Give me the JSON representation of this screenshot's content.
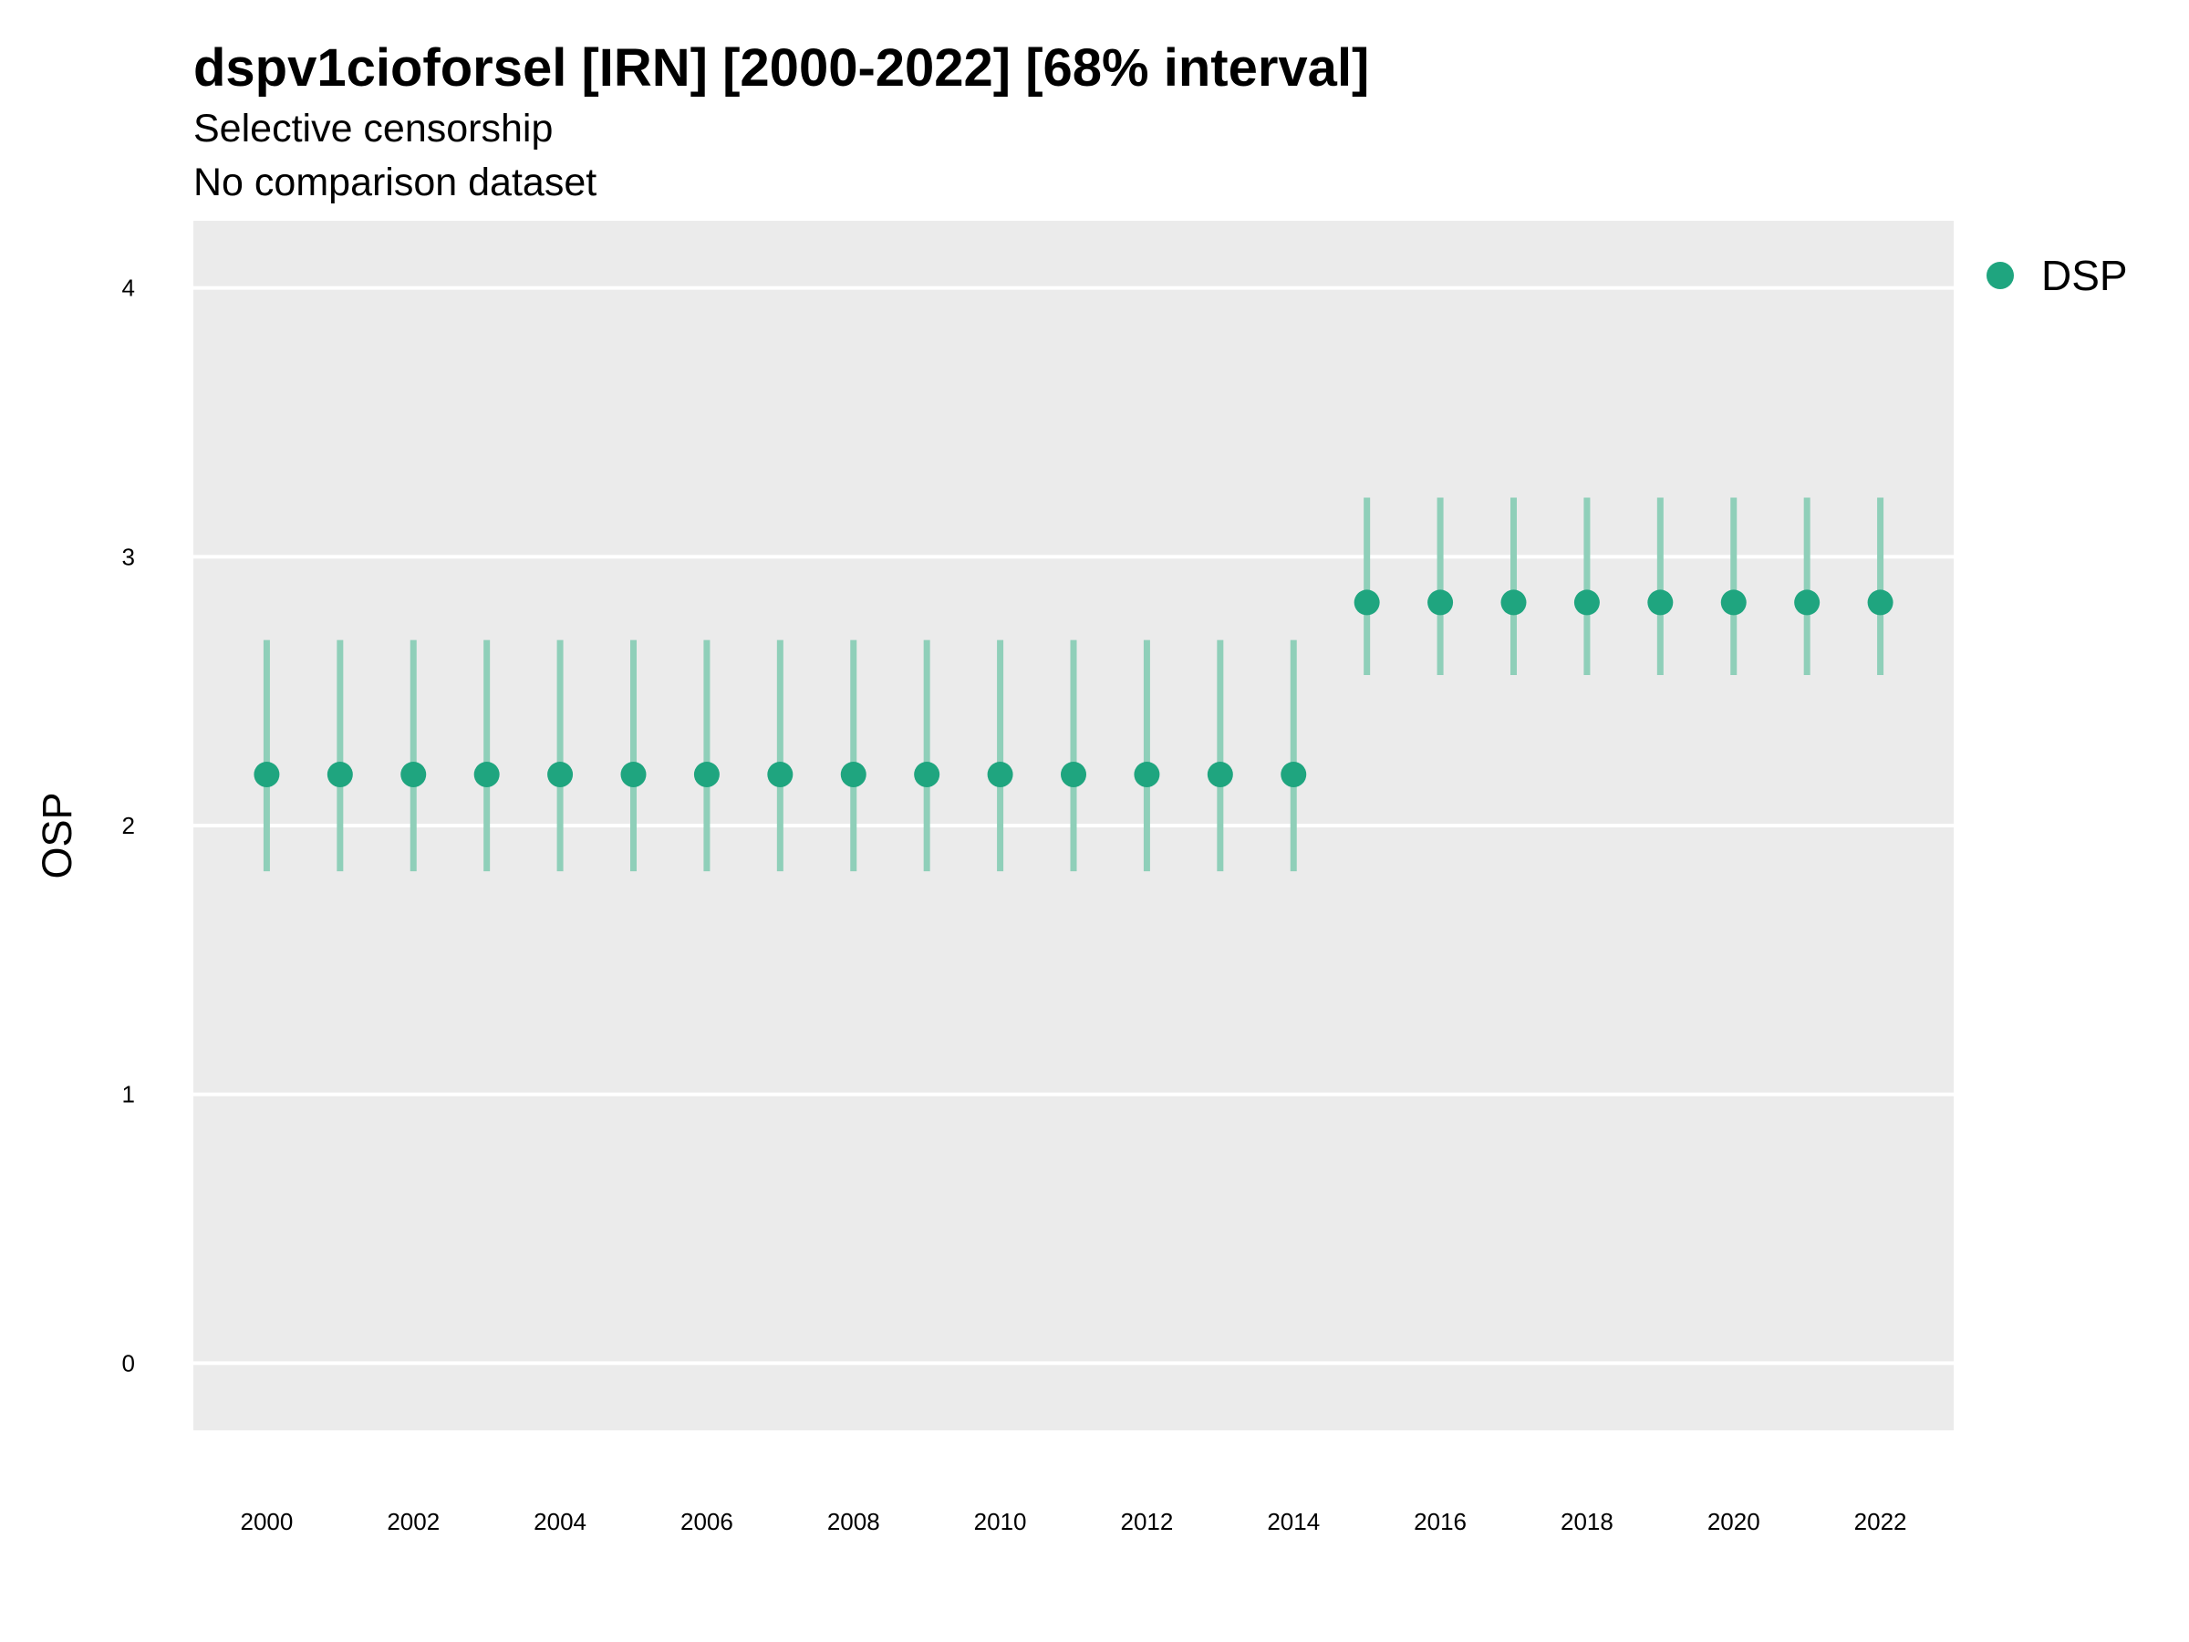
{
  "chart_data": {
    "type": "scatter",
    "title": "dspv1cioforsel [IRN] [2000-2022] [68% interval]",
    "subtitle_lines": [
      "Selective censorship",
      "No comparison dataset"
    ],
    "xlabel": "",
    "ylabel": "OSP",
    "ylim": [
      -0.25,
      4.25
    ],
    "xlim": [
      1999,
      2023
    ],
    "y_ticks": [
      "0",
      "1",
      "2",
      "3",
      "4"
    ],
    "x_ticks": [
      "2000",
      "2002",
      "2004",
      "2006",
      "2008",
      "2010",
      "2012",
      "2014",
      "2016",
      "2018",
      "2020",
      "2022"
    ],
    "grid": true,
    "legend_position": "right",
    "colors": {
      "point": "#1fa57f",
      "interval": "#8fcfb9",
      "panel": "#ebebeb",
      "grid": "#ffffff"
    },
    "series": [
      {
        "name": "DSP",
        "x": [
          2000,
          2001,
          2002,
          2003,
          2004,
          2005,
          2006,
          2007,
          2008,
          2009,
          2010,
          2011,
          2012,
          2013,
          2014,
          2015,
          2016,
          2017,
          2018,
          2019,
          2020,
          2021,
          2022
        ],
        "y": [
          2.19,
          2.19,
          2.19,
          2.19,
          2.19,
          2.19,
          2.19,
          2.19,
          2.19,
          2.19,
          2.19,
          2.19,
          2.19,
          2.19,
          2.19,
          2.83,
          2.83,
          2.83,
          2.83,
          2.83,
          2.83,
          2.83,
          2.83
        ],
        "lower": [
          1.83,
          1.83,
          1.83,
          1.83,
          1.83,
          1.83,
          1.83,
          1.83,
          1.83,
          1.83,
          1.83,
          1.83,
          1.83,
          1.83,
          1.83,
          2.56,
          2.56,
          2.56,
          2.56,
          2.56,
          2.56,
          2.56,
          2.56
        ],
        "upper": [
          2.69,
          2.69,
          2.69,
          2.69,
          2.69,
          2.69,
          2.69,
          2.69,
          2.69,
          2.69,
          2.69,
          2.69,
          2.69,
          2.69,
          2.69,
          3.22,
          3.22,
          3.22,
          3.22,
          3.22,
          3.22,
          3.22,
          3.22
        ]
      }
    ]
  }
}
